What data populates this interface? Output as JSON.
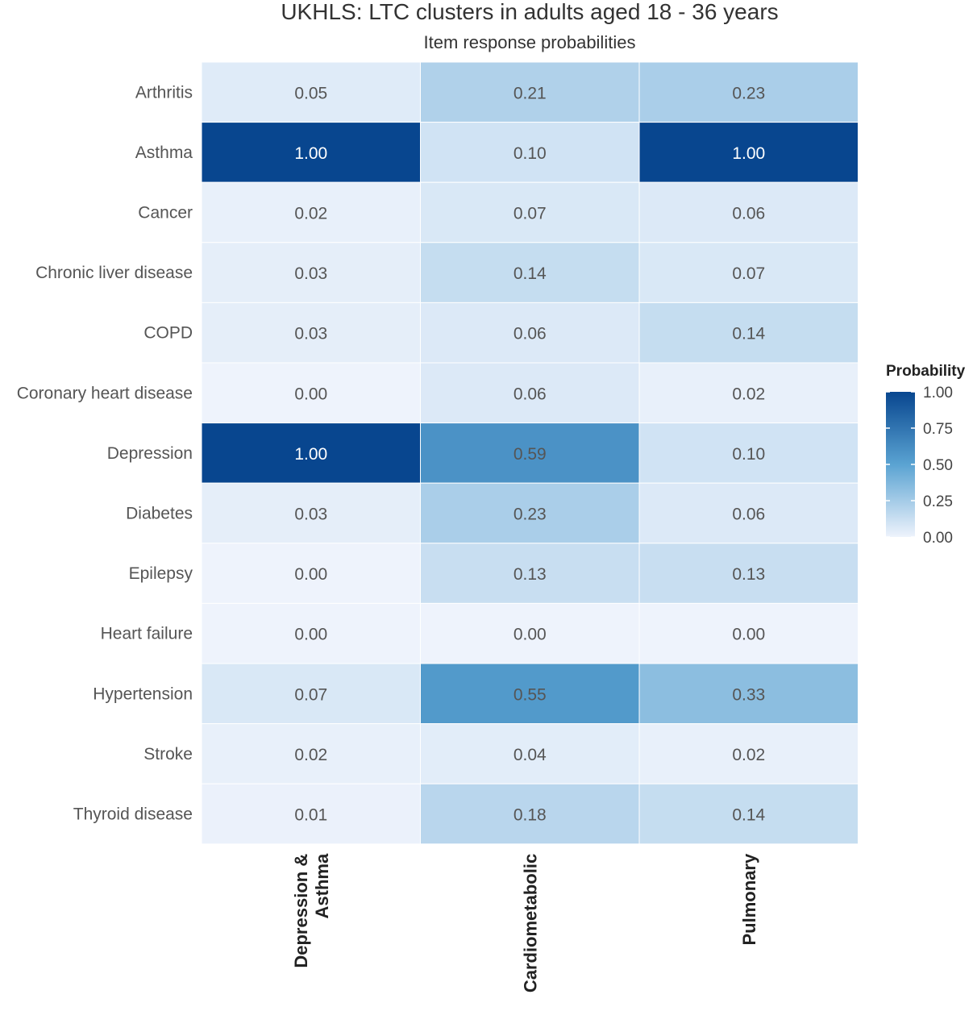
{
  "chart_data": {
    "type": "heatmap",
    "title": "UKHLS: LTC clusters in adults aged 18 - 36 years",
    "subtitle": "Item response probabilities",
    "rows": [
      "Arthritis",
      "Asthma",
      "Cancer",
      "Chronic liver disease",
      "COPD",
      "Coronary heart disease",
      "Depression",
      "Diabetes",
      "Epilepsy",
      "Heart failure",
      "Hypertension",
      "Stroke",
      "Thyroid disease"
    ],
    "columns": [
      {
        "lines": [
          "Depression &",
          "Asthma"
        ]
      },
      {
        "lines": [
          "Cardiometabolic"
        ]
      },
      {
        "lines": [
          "Pulmonary"
        ]
      }
    ],
    "values": [
      [
        0.05,
        0.21,
        0.23
      ],
      [
        1.0,
        0.1,
        1.0
      ],
      [
        0.02,
        0.07,
        0.06
      ],
      [
        0.03,
        0.14,
        0.07
      ],
      [
        0.03,
        0.06,
        0.14
      ],
      [
        0.0,
        0.06,
        0.02
      ],
      [
        1.0,
        0.59,
        0.1
      ],
      [
        0.03,
        0.23,
        0.06
      ],
      [
        0.0,
        0.13,
        0.13
      ],
      [
        0.0,
        0.0,
        0.0
      ],
      [
        0.07,
        0.55,
        0.33
      ],
      [
        0.02,
        0.04,
        0.02
      ],
      [
        0.01,
        0.18,
        0.14
      ]
    ],
    "value_labels": [
      [
        "0.05",
        "0.21",
        "0.23"
      ],
      [
        "1.00",
        "0.10",
        "1.00"
      ],
      [
        "0.02",
        "0.07",
        "0.06"
      ],
      [
        "0.03",
        "0.14",
        "0.07"
      ],
      [
        "0.03",
        "0.06",
        "0.14"
      ],
      [
        "0.00",
        "0.06",
        "0.02"
      ],
      [
        "1.00",
        "0.59",
        "0.10"
      ],
      [
        "0.03",
        "0.23",
        "0.06"
      ],
      [
        "0.00",
        "0.13",
        "0.13"
      ],
      [
        "0.00",
        "0.00",
        "0.00"
      ],
      [
        "0.07",
        "0.55",
        "0.33"
      ],
      [
        "0.02",
        "0.04",
        "0.02"
      ],
      [
        "0.01",
        "0.18",
        "0.14"
      ]
    ],
    "legend": {
      "title": "Probability",
      "range": [
        0,
        1
      ],
      "ticks": [
        1.0,
        0.75,
        0.5,
        0.25,
        0.0
      ],
      "tick_labels": [
        "1.00",
        "0.75",
        "0.50",
        "0.25",
        "0.00"
      ],
      "placement": "right"
    },
    "colors": {
      "low": "#eef3fc",
      "mid": "#5aa3d2",
      "high": "#08468f",
      "light_text": "#ffffff",
      "dark_text": "#555555"
    }
  }
}
